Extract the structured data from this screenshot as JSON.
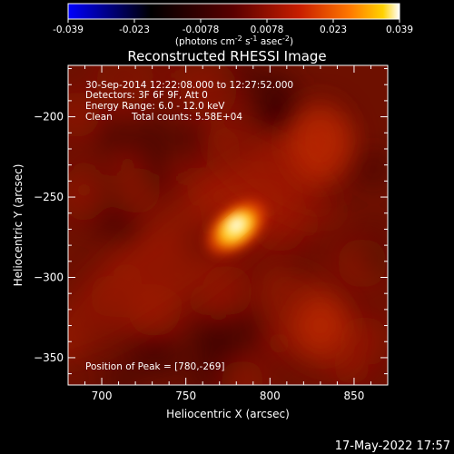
{
  "chart_data": {
    "type": "heatmap",
    "title": "Reconstructed RHESSI Image",
    "xlabel": "Heliocentric X (arcsec)",
    "ylabel": "Heliocentric Y (arcsec)",
    "x_ticks": [
      700,
      750,
      800,
      850
    ],
    "y_ticks": [
      -200,
      -250,
      -300,
      -350
    ],
    "xlim": [
      680,
      870
    ],
    "ylim": [
      -367,
      -168
    ],
    "colorbar": {
      "ticks": [
        "-0.039",
        "-0.023",
        "-0.0078",
        "0.0078",
        "0.023",
        "0.039"
      ],
      "range": [
        -0.039,
        0.039
      ],
      "units": "(photons cm",
      "units_exp1": "-2",
      "units_mid": " s",
      "units_exp2": "-1",
      "units_mid2": " asec",
      "units_exp3": "-2",
      "units_end": ")",
      "colormap": [
        "#0000ff",
        "#000000",
        "#5a0000",
        "#c81e00",
        "#ff7800",
        "#ffd200",
        "#ffffff"
      ]
    },
    "annotations": {
      "line1": "30-Sep-2014 12:22:08.000 to 12:27:52.000",
      "line2": "Detectors: 3F 6F 9F, Att 0",
      "line3": "Energy Range: 6.0 - 12.0 keV",
      "line4_a": "Clean",
      "line4_b": "Total counts: 5.58E+04",
      "peak": "Position of Peak = [780,-269]"
    },
    "peak": {
      "x": 780,
      "y": -269
    },
    "sources": [
      {
        "x": 780,
        "y": -269,
        "value": 0.039,
        "sx": 8,
        "sy": 7
      },
      {
        "x": 830,
        "y": -330,
        "value": 0.009,
        "sx": 12,
        "sy": 14
      },
      {
        "x": 830,
        "y": -215,
        "value": 0.006,
        "sx": 15,
        "sy": 20
      }
    ]
  },
  "footer": {
    "date": "17-May-2022 17:57"
  }
}
